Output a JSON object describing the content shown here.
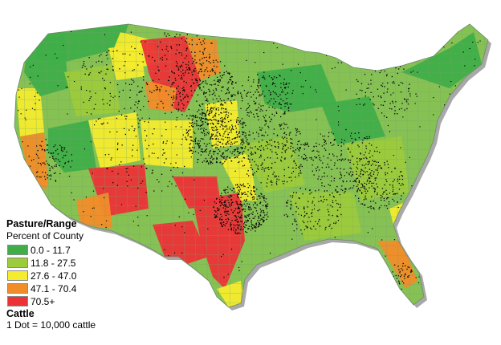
{
  "map": {
    "subject": "Pasture/Range land and cattle distribution, conterminous United States",
    "colors": {
      "water_shadow": "#9c9c9c",
      "base": "#86c154",
      "border": "#6f8f6f",
      "dot": "#000000"
    }
  },
  "legend": {
    "title": "Pasture/Range",
    "subtitle": "Percent of County",
    "classes": [
      {
        "label": "0.0 - 11.7",
        "color": "#3fae49"
      },
      {
        "label": "11.8 - 27.5",
        "color": "#9ccb3b"
      },
      {
        "label": "27.6 - 47.0",
        "color": "#f4ec2e"
      },
      {
        "label": "47.1 - 70.4",
        "color": "#f28c28"
      },
      {
        "label": "70.5+",
        "color": "#ec3237"
      }
    ],
    "cattle_title": "Cattle",
    "cattle_note": "1 Dot = 10,000 cattle"
  }
}
